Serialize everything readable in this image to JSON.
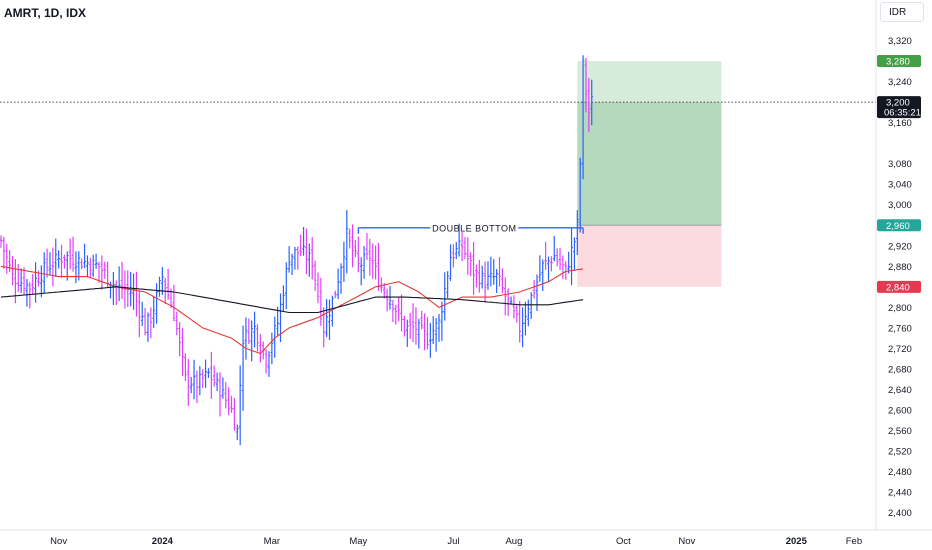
{
  "header": {
    "title": "AMRT, 1D, IDX",
    "currency": "IDR"
  },
  "chart_data": {
    "type": "bar",
    "ylim": [
      2370,
      3360
    ],
    "y_ticks": [
      2400,
      2440,
      2480,
      2520,
      2560,
      2600,
      2640,
      2680,
      2720,
      2760,
      2800,
      2840,
      2880,
      2920,
      3000,
      3040,
      3080,
      3160,
      3240,
      3320
    ],
    "y_tick_labels": [
      "2,400",
      "2,440",
      "2,480",
      "2,520",
      "2,560",
      "2,600",
      "2,640",
      "2,680",
      "2,720",
      "2,760",
      "2,800",
      "2,840",
      "2,880",
      "2,920",
      "3,000",
      "3,040",
      "3,080",
      "3,160",
      "3,240",
      "3,320"
    ],
    "x_ticks": [
      {
        "label": "Nov",
        "index": 20,
        "bold": false
      },
      {
        "label": "2024",
        "index": 56,
        "bold": true
      },
      {
        "label": "Mar",
        "index": 94,
        "bold": false
      },
      {
        "label": "May",
        "index": 124,
        "bold": false
      },
      {
        "label": "Jul",
        "index": 157,
        "bold": false
      },
      {
        "label": "Aug",
        "index": 178,
        "bold": false
      },
      {
        "label": "Oct",
        "index": 216,
        "bold": false
      },
      {
        "label": "Nov",
        "index": 238,
        "bold": false
      },
      {
        "label": "2025",
        "index": 276,
        "bold": true
      },
      {
        "label": "Feb",
        "index": 296,
        "bold": false
      }
    ],
    "total_slots": 304,
    "close_anchors": [
      [
        0,
        2930
      ],
      [
        4,
        2860
      ],
      [
        10,
        2840
      ],
      [
        16,
        2880
      ],
      [
        22,
        2900
      ],
      [
        28,
        2890
      ],
      [
        34,
        2880
      ],
      [
        40,
        2840
      ],
      [
        46,
        2830
      ],
      [
        50,
        2760
      ],
      [
        52,
        2780
      ],
      [
        56,
        2860
      ],
      [
        60,
        2790
      ],
      [
        64,
        2660
      ],
      [
        68,
        2650
      ],
      [
        72,
        2670
      ],
      [
        76,
        2640
      ],
      [
        80,
        2600
      ],
      [
        82,
        2560
      ],
      [
        84,
        2740
      ],
      [
        88,
        2760
      ],
      [
        92,
        2700
      ],
      [
        96,
        2770
      ],
      [
        100,
        2900
      ],
      [
        104,
        2910
      ],
      [
        108,
        2890
      ],
      [
        112,
        2760
      ],
      [
        116,
        2830
      ],
      [
        120,
        2940
      ],
      [
        124,
        2880
      ],
      [
        128,
        2900
      ],
      [
        132,
        2840
      ],
      [
        136,
        2810
      ],
      [
        140,
        2760
      ],
      [
        144,
        2760
      ],
      [
        148,
        2740
      ],
      [
        152,
        2770
      ],
      [
        156,
        2900
      ],
      [
        160,
        2920
      ],
      [
        164,
        2870
      ],
      [
        168,
        2850
      ],
      [
        172,
        2860
      ],
      [
        176,
        2810
      ],
      [
        180,
        2760
      ],
      [
        184,
        2820
      ],
      [
        188,
        2880
      ],
      [
        192,
        2900
      ],
      [
        196,
        2870
      ],
      [
        199,
        2930
      ],
      [
        200,
        2960
      ],
      [
        201,
        3080
      ],
      [
        202,
        3270
      ],
      [
        203,
        3220
      ],
      [
        204,
        3180
      ],
      [
        205,
        3200
      ]
    ],
    "series": [
      {
        "name": "",
        "type": "ma",
        "color": "#e53935",
        "anchors": [
          [
            0,
            2880
          ],
          [
            10,
            2870
          ],
          [
            20,
            2860
          ],
          [
            30,
            2860
          ],
          [
            40,
            2840
          ],
          [
            50,
            2830
          ],
          [
            60,
            2800
          ],
          [
            70,
            2760
          ],
          [
            80,
            2740
          ],
          [
            85,
            2720
          ],
          [
            90,
            2710
          ],
          [
            95,
            2740
          ],
          [
            100,
            2760
          ],
          [
            110,
            2780
          ],
          [
            120,
            2810
          ],
          [
            130,
            2840
          ],
          [
            138,
            2850
          ],
          [
            145,
            2830
          ],
          [
            152,
            2800
          ],
          [
            160,
            2820
          ],
          [
            170,
            2820
          ],
          [
            180,
            2830
          ],
          [
            190,
            2850
          ],
          [
            196,
            2870
          ],
          [
            202,
            2875
          ]
        ]
      },
      {
        "name": "",
        "type": "ma",
        "color": "#131722",
        "anchors": [
          [
            0,
            2820
          ],
          [
            20,
            2830
          ],
          [
            40,
            2840
          ],
          [
            60,
            2830
          ],
          [
            80,
            2810
          ],
          [
            100,
            2790
          ],
          [
            110,
            2790
          ],
          [
            120,
            2805
          ],
          [
            130,
            2820
          ],
          [
            140,
            2820
          ],
          [
            160,
            2815
          ],
          [
            180,
            2805
          ],
          [
            190,
            2805
          ],
          [
            202,
            2815
          ]
        ]
      }
    ],
    "annotations": [
      {
        "type": "hline",
        "label": "DOUBLE BOTTOM",
        "value": 2955,
        "from_index": 124,
        "to_index": 202,
        "color": "#2962ff"
      },
      {
        "type": "position",
        "entry": 2960,
        "target": 3280,
        "stop": 2840,
        "from_index": 200,
        "to_index": 250,
        "profit_color": "#b7dbbd",
        "loss_color": "#fbd2d7"
      }
    ],
    "price_labels": [
      {
        "text": "3,280",
        "value": 3280,
        "color": "#43a047"
      },
      {
        "text": "3,200",
        "sub": "06:35:21",
        "value": 3200,
        "color": "#131722"
      },
      {
        "text": "2,960",
        "value": 2960,
        "color": "#26a69a"
      },
      {
        "text": "2,840",
        "value": 2840,
        "color": "#e53950"
      }
    ],
    "current_price_line": 3200,
    "colors": {
      "up": "#2962ff",
      "down": "#e040fb"
    },
    "grid": false
  }
}
